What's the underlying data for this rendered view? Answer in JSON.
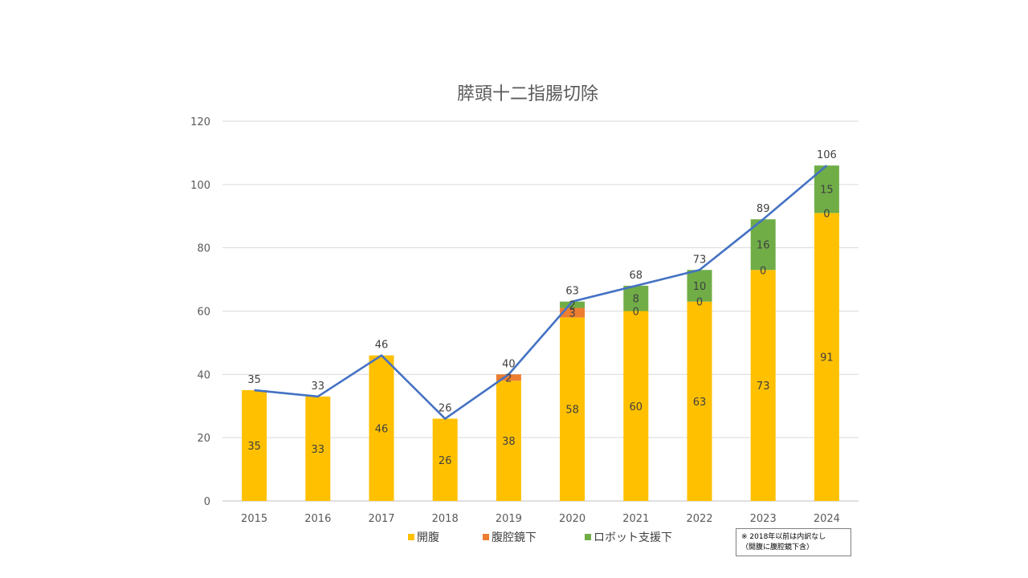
{
  "chart_data": {
    "type": "bar",
    "stacked": true,
    "title": "膵頭十二指腸切除",
    "categories": [
      "2015",
      "2016",
      "2017",
      "2018",
      "2019",
      "2020",
      "2021",
      "2022",
      "2023",
      "2024"
    ],
    "series": [
      {
        "name": "開腹",
        "color": "#FFC000",
        "values": [
          35,
          33,
          46,
          26,
          38,
          58,
          60,
          63,
          73,
          91
        ],
        "labels": [
          "35",
          "33",
          "46",
          "26",
          "38",
          "58",
          "60",
          "63",
          "73",
          "91"
        ]
      },
      {
        "name": "腹腔鏡下",
        "color": "#ED7D31",
        "values": [
          0,
          0,
          0,
          0,
          2,
          3,
          0,
          0,
          0,
          0
        ],
        "labels": [
          null,
          null,
          null,
          null,
          "2",
          "3",
          "0",
          "0",
          "0",
          "0"
        ]
      },
      {
        "name": "ロボット支援下",
        "color": "#70AD47",
        "values": [
          0,
          0,
          0,
          0,
          0,
          2,
          8,
          10,
          16,
          15
        ],
        "labels": [
          null,
          null,
          null,
          null,
          null,
          "2",
          "8",
          "10",
          "16",
          "15"
        ]
      }
    ],
    "total_line": {
      "color": "#4472C4",
      "values": [
        35,
        33,
        46,
        26,
        40,
        63,
        68,
        73,
        89,
        106
      ],
      "labels": [
        "35",
        "33",
        "46",
        "26",
        "40",
        "63",
        "68",
        "73",
        "89",
        "106"
      ]
    },
    "y_ticks": [
      "0",
      "20",
      "40",
      "60",
      "80",
      "100",
      "120"
    ],
    "ylim": [
      0,
      120
    ],
    "grid": true,
    "legend_position": "bottom",
    "note_lines": [
      "※ 2018年以前は内訳なし",
      "（開腹に腹腔鏡下含）"
    ]
  }
}
